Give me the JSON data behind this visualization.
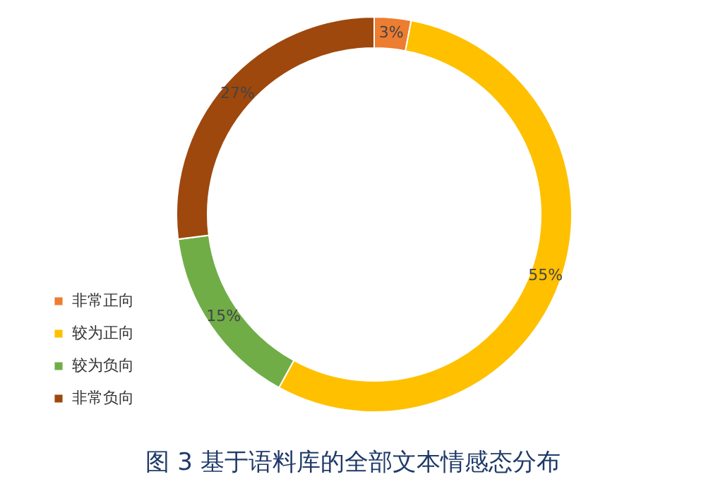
{
  "chart_data": {
    "type": "donut",
    "categories": [
      "非常正向",
      "较为正向",
      "较为负向",
      "非常负向"
    ],
    "values": [
      3,
      55,
      15,
      27
    ],
    "colors": [
      "#ed7d31",
      "#ffc000",
      "#70ad47",
      "#9e480e"
    ],
    "value_labels": [
      "3%",
      "55%",
      "15%",
      "27%"
    ],
    "legend": "bottom left",
    "annotations": [
      "图 3  基于语料库的全部文本情感态分布"
    ]
  }
}
